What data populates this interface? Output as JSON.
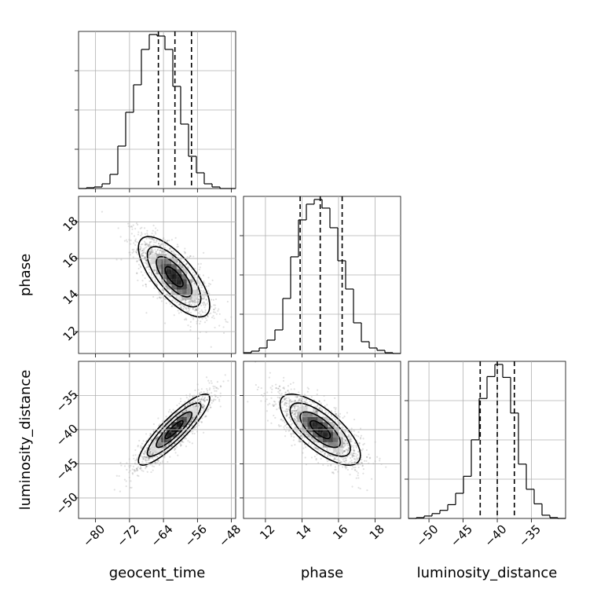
{
  "chart_data": {
    "type": "corner",
    "parameters": [
      "geocent_time",
      "phase",
      "luminosity_distance"
    ],
    "labels": {
      "geocent_time": "geocent_time",
      "phase": "phase",
      "luminosity_distance": "luminosity_distance"
    },
    "ranges": {
      "geocent_time": [
        -84,
        -47
      ],
      "phase": [
        10.8,
        19.4
      ],
      "luminosity_distance": [
        -53,
        -30
      ]
    },
    "ticks": {
      "geocent_time": [
        -80,
        -72,
        -64,
        -56,
        -48
      ],
      "phase": [
        12,
        14,
        16,
        18
      ],
      "luminosity_distance": [
        -50,
        -45,
        -40,
        -35
      ]
    },
    "tick_labels": {
      "geocent_time": [
        "−80",
        "−72",
        "−64",
        "−56",
        "−48"
      ],
      "phase": [
        "12",
        "14",
        "16",
        "18"
      ],
      "luminosity_distance": [
        "−50",
        "−45",
        "−40",
        "−35"
      ]
    },
    "histograms": {
      "geocent_time": {
        "bin_edges": [
          -84,
          -82.15,
          -80.3,
          -78.45,
          -76.6,
          -74.75,
          -72.9,
          -71.05,
          -69.2,
          -67.35,
          -65.5,
          -63.65,
          -61.8,
          -59.95,
          -58.1,
          -56.25,
          -54.4,
          -52.55,
          -50.7,
          -48.85,
          -47
        ],
        "counts": [
          0,
          1,
          2,
          6,
          18,
          54,
          97,
          132,
          177,
          196,
          194,
          177,
          130,
          82,
          41,
          20,
          6,
          2,
          0,
          0
        ],
        "quantiles": [
          -65.2,
          -61.3,
          -57.4
        ]
      },
      "phase": {
        "bin_edges": [
          10.8,
          11.23,
          11.66,
          12.09,
          12.52,
          12.95,
          13.38,
          13.81,
          14.24,
          14.67,
          15.1,
          15.53,
          15.96,
          16.39,
          16.82,
          17.25,
          17.68,
          18.11,
          18.54,
          18.97,
          19.4
        ],
        "counts": [
          1,
          3,
          7,
          17,
          30,
          70,
          123,
          170,
          190,
          196,
          185,
          160,
          118,
          82,
          39,
          15,
          7,
          4,
          1,
          0
        ],
        "quantiles": [
          13.9,
          15.0,
          16.2
        ]
      },
      "luminosity_distance": {
        "bin_edges": [
          -53,
          -51.85,
          -50.7,
          -49.55,
          -48.4,
          -47.25,
          -46.1,
          -44.95,
          -43.8,
          -42.65,
          -41.5,
          -40.35,
          -39.2,
          -38.05,
          -36.9,
          -35.75,
          -34.6,
          -33.45,
          -32.3,
          -31.15,
          -30
        ],
        "counts": [
          0,
          1,
          3,
          6,
          10,
          17,
          31,
          52,
          97,
          148,
          175,
          190,
          174,
          130,
          67,
          36,
          18,
          4,
          1,
          0
        ],
        "quantiles": [
          -42.5,
          -40.0,
          -37.5
        ]
      }
    },
    "pairs": [
      {
        "x": "geocent_time",
        "y": "phase",
        "mean": [
          -61.5,
          15.0
        ],
        "sd": [
          4.2,
          1.1
        ],
        "correlation": -0.72
      },
      {
        "x": "geocent_time",
        "y": "luminosity_distance",
        "mean": [
          -61.5,
          -40.0
        ],
        "sd": [
          4.2,
          2.6
        ],
        "correlation": 0.88
      },
      {
        "x": "phase",
        "y": "luminosity_distance",
        "mean": [
          15.0,
          -40.0
        ],
        "sd": [
          1.1,
          2.6
        ],
        "correlation": -0.72
      }
    ],
    "grid": true,
    "quantile_line_style": "dashed",
    "contour_levels_sigma": [
      0.5,
      1.0,
      1.5,
      2.0
    ]
  }
}
